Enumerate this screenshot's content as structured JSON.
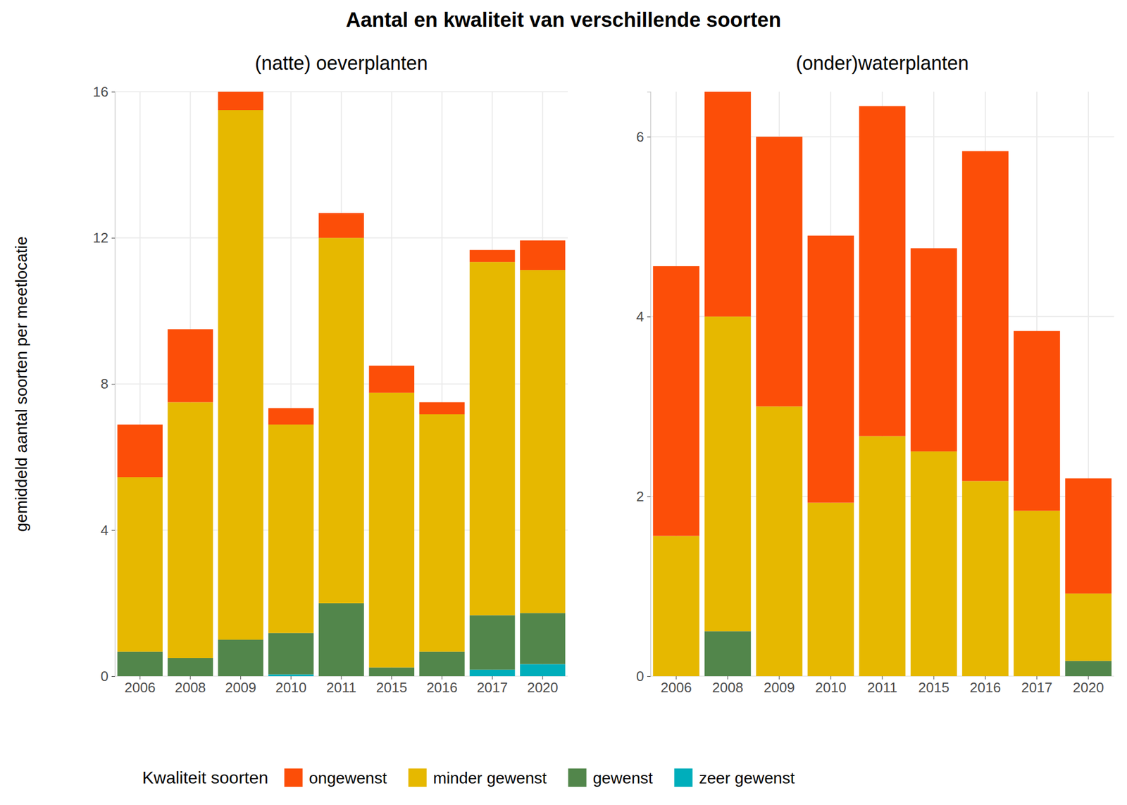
{
  "chart_data": {
    "type": "bar",
    "stacked": true,
    "grid": true,
    "legend": "bottom",
    "title": "Aantal en kwaliteit van verschillende soorten",
    "y_label": "gemiddeld aantal soorten per meetlocatie",
    "legend_title": "Kwaliteit soorten",
    "categories": [
      "2006",
      "2008",
      "2009",
      "2010",
      "2011",
      "2015",
      "2016",
      "2017",
      "2020"
    ],
    "series": [
      {
        "name": "ongewenst",
        "color": "#fc4e08"
      },
      {
        "name": "minder gewenst",
        "color": "#e6b800"
      },
      {
        "name": "gewenst",
        "color": "#52864b"
      },
      {
        "name": "zeer gewenst",
        "color": "#00aebb"
      }
    ],
    "panels": [
      {
        "subtitle": "(natte) oeverplanten",
        "ylim": [
          0,
          16
        ],
        "yticks": [
          0,
          4,
          8,
          12,
          16
        ],
        "series": [
          {
            "values": [
              1.44,
              2.0,
              0.5,
              0.45,
              0.68,
              0.74,
              0.33,
              0.33,
              0.81
            ]
          },
          {
            "values": [
              4.78,
              7.0,
              14.5,
              5.71,
              10.0,
              7.52,
              6.5,
              9.67,
              9.39
            ]
          },
          {
            "values": [
              0.67,
              0.5,
              1.0,
              1.13,
              2.0,
              0.24,
              0.67,
              1.49,
              1.4
            ]
          },
          {
            "values": [
              0,
              0,
              0,
              0.05,
              0,
              0,
              0,
              0.18,
              0.33
            ]
          }
        ]
      },
      {
        "subtitle": "(onder)waterplanten",
        "ylim": [
          0,
          6.5
        ],
        "yticks": [
          0,
          2,
          4,
          6
        ],
        "series": [
          {
            "values": [
              3.0,
              2.5,
              3.0,
              2.97,
              3.67,
              2.26,
              3.67,
              2.0,
              1.28
            ]
          },
          {
            "values": [
              1.56,
              3.5,
              3.0,
              1.93,
              2.67,
              2.5,
              2.17,
              1.84,
              0.75
            ]
          },
          {
            "values": [
              0,
              0.5,
              0,
              0,
              0,
              0,
              0,
              0,
              0.17
            ]
          },
          {
            "values": [
              0,
              0,
              0,
              0,
              0,
              0,
              0,
              0,
              0
            ]
          }
        ]
      }
    ]
  }
}
